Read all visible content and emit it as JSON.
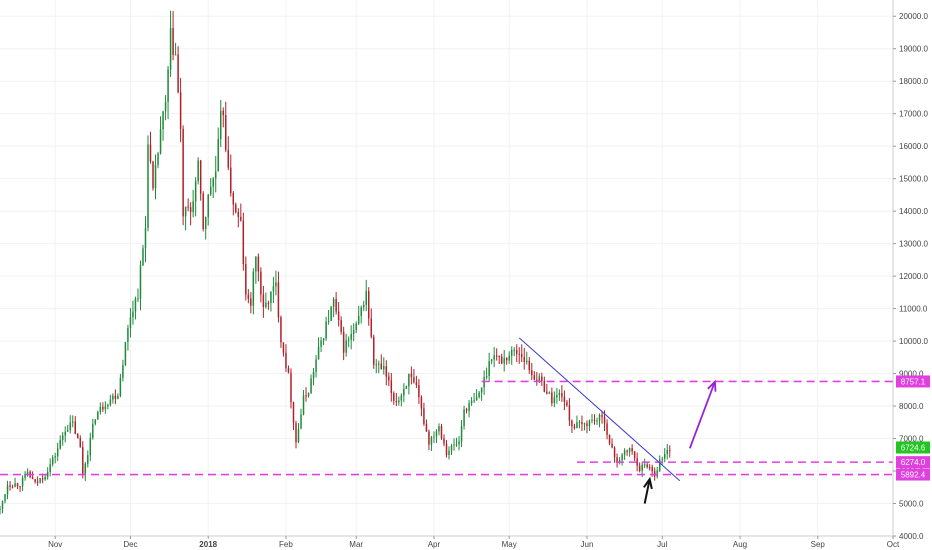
{
  "chart_data": {
    "type": "candlestick",
    "title": "",
    "xlabel": "",
    "ylabel": "",
    "ylim": [
      4000,
      20500
    ],
    "y_ticks": [
      {
        "value": 4000,
        "label": "4000.0"
      },
      {
        "value": 5000,
        "label": "5000.0"
      },
      {
        "value": 6000,
        "label": "6000.0"
      },
      {
        "value": 7000,
        "label": "7000.0"
      },
      {
        "value": 8000,
        "label": "8000.0"
      },
      {
        "value": 9000,
        "label": "9000.0"
      },
      {
        "value": 10000,
        "label": "10000.0"
      },
      {
        "value": 11000,
        "label": "11000.0"
      },
      {
        "value": 12000,
        "label": "12000.0"
      },
      {
        "value": 13000,
        "label": "13000.0"
      },
      {
        "value": 14000,
        "label": "14000.0"
      },
      {
        "value": 15000,
        "label": "15000.0"
      },
      {
        "value": 16000,
        "label": "16000.0"
      },
      {
        "value": 17000,
        "label": "17000.0"
      },
      {
        "value": 18000,
        "label": "18000.0"
      },
      {
        "value": 19000,
        "label": "19000.0"
      },
      {
        "value": 20000,
        "label": "20000.0"
      }
    ],
    "x_ticks": [
      {
        "date": "2017-11-01",
        "label": "Nov",
        "bold": false
      },
      {
        "date": "2017-12-01",
        "label": "Dec",
        "bold": false
      },
      {
        "date": "2018-01-01",
        "label": "2018",
        "bold": true
      },
      {
        "date": "2018-02-01",
        "label": "Feb",
        "bold": false
      },
      {
        "date": "2018-03-01",
        "label": "Mar",
        "bold": false
      },
      {
        "date": "2018-04-01",
        "label": "Apr",
        "bold": false
      },
      {
        "date": "2018-05-01",
        "label": "May",
        "bold": false
      },
      {
        "date": "2018-06-01",
        "label": "Jun",
        "bold": false
      },
      {
        "date": "2018-07-01",
        "label": "Jul",
        "bold": false
      },
      {
        "date": "2018-08-01",
        "label": "Aug",
        "bold": false
      },
      {
        "date": "2018-09-01",
        "label": "Sep",
        "bold": false
      },
      {
        "date": "2018-10-01",
        "label": "Oct",
        "bold": false
      }
    ],
    "xlim": [
      "2017-10-10",
      "2018-10-01"
    ],
    "price_path": [
      [
        "2017-10-10",
        4800
      ],
      [
        "2017-10-13",
        5600
      ],
      [
        "2017-10-18",
        5600
      ],
      [
        "2017-10-21",
        5950
      ],
      [
        "2017-10-24",
        5600
      ],
      [
        "2017-10-28",
        5900
      ],
      [
        "2017-11-01",
        6500
      ],
      [
        "2017-11-05",
        7300
      ],
      [
        "2017-11-08",
        7450
      ],
      [
        "2017-11-11",
        6700
      ],
      [
        "2017-11-12",
        5900
      ],
      [
        "2017-11-14",
        6600
      ],
      [
        "2017-11-17",
        7700
      ],
      [
        "2017-11-21",
        8100
      ],
      [
        "2017-11-26",
        8400
      ],
      [
        "2017-11-29",
        9900
      ],
      [
        "2017-12-01",
        10800
      ],
      [
        "2017-12-04",
        11500
      ],
      [
        "2017-12-07",
        13500
      ],
      [
        "2017-12-08",
        16300
      ],
      [
        "2017-12-10",
        14500
      ],
      [
        "2017-12-13",
        16500
      ],
      [
        "2017-12-15",
        17200
      ],
      [
        "2017-12-17",
        19300
      ],
      [
        "2017-12-19",
        18800
      ],
      [
        "2017-12-21",
        16400
      ],
      [
        "2017-12-22",
        13900
      ],
      [
        "2017-12-25",
        14000
      ],
      [
        "2017-12-28",
        15300
      ],
      [
        "2017-12-30",
        13500
      ],
      [
        "2018-01-02",
        14800
      ],
      [
        "2018-01-04",
        15200
      ],
      [
        "2018-01-06",
        16800
      ],
      [
        "2018-01-07",
        17100
      ],
      [
        "2018-01-09",
        15100
      ],
      [
        "2018-01-12",
        13900
      ],
      [
        "2018-01-14",
        13600
      ],
      [
        "2018-01-16",
        11300
      ],
      [
        "2018-01-18",
        11200
      ],
      [
        "2018-01-20",
        12700
      ],
      [
        "2018-01-23",
        10900
      ],
      [
        "2018-01-25",
        11300
      ],
      [
        "2018-01-28",
        11700
      ],
      [
        "2018-01-30",
        10100
      ],
      [
        "2018-02-02",
        8900
      ],
      [
        "2018-02-05",
        6900
      ],
      [
        "2018-02-08",
        8200
      ],
      [
        "2018-02-10",
        8500
      ],
      [
        "2018-02-15",
        10000
      ],
      [
        "2018-02-20",
        11200
      ],
      [
        "2018-02-24",
        9800
      ],
      [
        "2018-03-01",
        10400
      ],
      [
        "2018-03-05",
        11500
      ],
      [
        "2018-03-08",
        9300
      ],
      [
        "2018-03-12",
        9100
      ],
      [
        "2018-03-16",
        8200
      ],
      [
        "2018-03-18",
        8200
      ],
      [
        "2018-03-22",
        8900
      ],
      [
        "2018-03-25",
        8500
      ],
      [
        "2018-03-30",
        6900
      ],
      [
        "2018-04-03",
        7400
      ],
      [
        "2018-04-06",
        6600
      ],
      [
        "2018-04-11",
        6900
      ],
      [
        "2018-04-13",
        7900
      ],
      [
        "2018-04-18",
        8200
      ],
      [
        "2018-04-21",
        8800
      ],
      [
        "2018-04-24",
        9600
      ],
      [
        "2018-04-28",
        9400
      ],
      [
        "2018-05-03",
        9700
      ],
      [
        "2018-05-06",
        9600
      ],
      [
        "2018-05-10",
        9000
      ],
      [
        "2018-05-14",
        8700
      ],
      [
        "2018-05-18",
        8200
      ],
      [
        "2018-05-22",
        8400
      ],
      [
        "2018-05-26",
        7400
      ],
      [
        "2018-05-30",
        7400
      ],
      [
        "2018-06-04",
        7600
      ],
      [
        "2018-06-08",
        7600
      ],
      [
        "2018-06-10",
        6800
      ],
      [
        "2018-06-13",
        6300
      ],
      [
        "2018-06-18",
        6700
      ],
      [
        "2018-06-22",
        6100
      ],
      [
        "2018-06-25",
        6200
      ],
      [
        "2018-06-28",
        5900
      ],
      [
        "2018-06-30",
        6300
      ],
      [
        "2018-07-02",
        6500
      ],
      [
        "2018-07-04",
        6700
      ]
    ],
    "levels": [
      {
        "value": 8757.1,
        "label": "8757.1",
        "start_date": "2018-04-20",
        "color": "#e040e0"
      },
      {
        "value": 6274.0,
        "label": "6274.0",
        "start_date": "2018-05-28",
        "color": "#e040e0"
      },
      {
        "value": 5892.4,
        "label": "5892.4",
        "start_date": "2017-10-10",
        "color": "#e040e0"
      }
    ],
    "current_price": {
      "value": 6724.6,
      "label": "6724.6",
      "color": "#22c522"
    },
    "trendline": {
      "start": [
        "2018-05-05",
        10100
      ],
      "end": [
        "2018-07-08",
        5700
      ],
      "color": "#3a3ad0"
    },
    "projection_arrow": {
      "start": [
        "2018-07-12",
        6700
      ],
      "end": [
        "2018-07-22",
        8750
      ],
      "color": "#9a22d6"
    },
    "bottom_arrow": {
      "tip": [
        "2018-06-26",
        5750
      ],
      "tail": [
        "2018-06-24",
        5000
      ],
      "color": "#111111"
    },
    "colors": {
      "up": "#1f8a3a",
      "down": "#b0212a",
      "grid": "#f2f2f2",
      "axis": "#cccccc"
    }
  }
}
